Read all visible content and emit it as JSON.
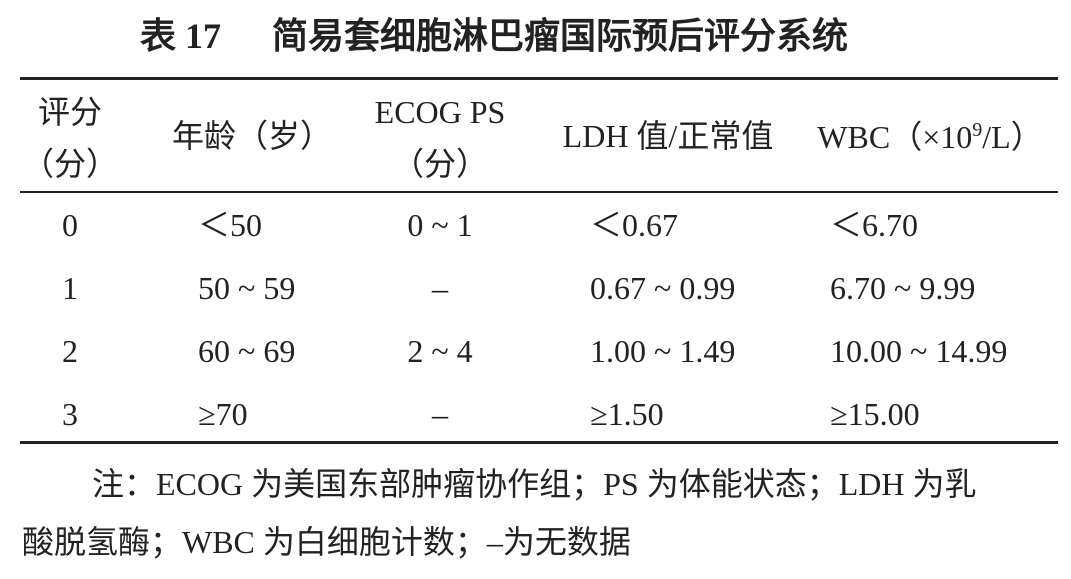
{
  "title": {
    "label": "表 17",
    "text": "简易套细胞淋巴瘤国际预后评分系统"
  },
  "table": {
    "header": [
      [
        "评分",
        "（分）"
      ],
      [
        "年龄（岁）"
      ],
      [
        "ECOG PS",
        "（分）"
      ],
      [
        "LDH 值/正常值"
      ],
      {
        "before": "WBC（×10",
        "superscript": "9",
        "after": "/L）"
      }
    ],
    "rows": [
      [
        "0",
        "＜50",
        "0 ~ 1",
        "＜0.67",
        "＜6.70"
      ],
      [
        "1",
        "50 ~ 59",
        "–",
        "0.67 ~ 0.99",
        "6.70 ~ 9.99"
      ],
      [
        "2",
        "60 ~ 69",
        "2 ~ 4",
        "1.00 ~ 1.49",
        "10.00 ~ 14.99"
      ],
      [
        "3",
        "≥70",
        "–",
        "≥1.50",
        "≥15.00"
      ]
    ]
  },
  "note": [
    "注：ECOG 为美国东部肿瘤协作组；PS 为体能状态；LDH 为乳",
    "酸脱氢酶；WBC 为白细胞计数；–为无数据"
  ]
}
